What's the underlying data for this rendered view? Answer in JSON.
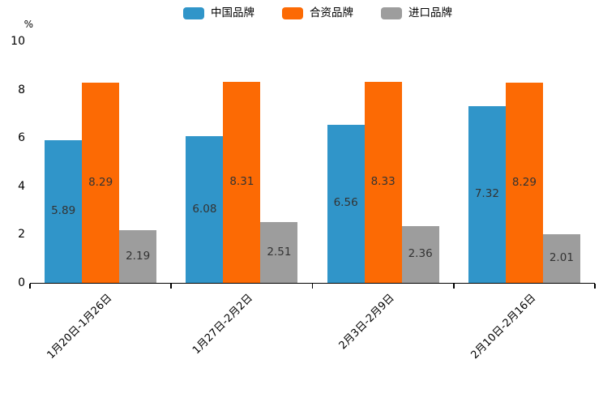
{
  "chart_data": {
    "type": "bar",
    "title": "",
    "unit_label": "%",
    "categories": [
      "1月20日-1月26日",
      "1月27日-2月2日",
      "2月3日-2月9日",
      "2月10日-2月16日"
    ],
    "series": [
      {
        "name": "中国品牌",
        "color": "#3095C9",
        "values": [
          5.89,
          6.08,
          6.56,
          7.32
        ]
      },
      {
        "name": "合资品牌",
        "color": "#FC6A04",
        "values": [
          8.29,
          8.31,
          8.33,
          8.29
        ]
      },
      {
        "name": "进口品牌",
        "color": "#9D9D9D",
        "values": [
          2.19,
          2.51,
          2.36,
          2.01
        ]
      }
    ],
    "ylim": [
      0,
      10
    ],
    "yticks": [
      0,
      2,
      4,
      6,
      8,
      10
    ],
    "grid": false,
    "legend_position": "top",
    "value_labels_shown": true,
    "value_label_format": "2-decimals",
    "colors": {
      "value_label_text": "#333333",
      "axis": "#000000",
      "background": "#FFFFFF"
    }
  }
}
